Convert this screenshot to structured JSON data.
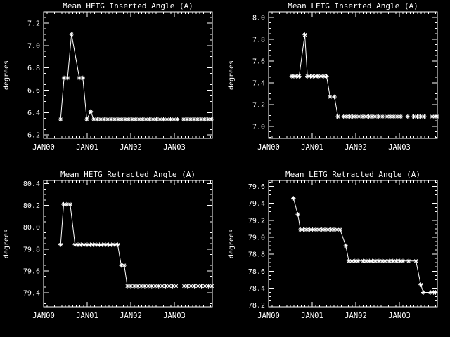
{
  "page": {
    "background": "#000000",
    "foreground": "#ffffff"
  },
  "chart_data": [
    {
      "type": "line",
      "title": "Mean HETG Inserted Angle (A)",
      "xlabel": "",
      "ylabel": "degrees",
      "marker": "asterisk",
      "grid": false,
      "xlim": [
        0,
        3.87
      ],
      "ylim": [
        6.17,
        7.3
      ],
      "xticks": [
        {
          "v": 0,
          "label": "JAN00"
        },
        {
          "v": 1,
          "label": "JAN01"
        },
        {
          "v": 2,
          "label": "JAN02"
        },
        {
          "v": 3,
          "label": "JAN03"
        }
      ],
      "yticks": [
        {
          "v": 6.2,
          "label": "6.2"
        },
        {
          "v": 6.4,
          "label": "6.4"
        },
        {
          "v": 6.6,
          "label": "6.6"
        },
        {
          "v": 6.8,
          "label": "6.8"
        },
        {
          "v": 7.0,
          "label": "7.0"
        },
        {
          "v": 7.2,
          "label": "7.2"
        }
      ],
      "minor_x_step": 0.08333,
      "minor_y_step": 0.05,
      "segments": [
        [
          [
            0.39,
            6.34
          ],
          [
            0.47,
            6.71
          ],
          [
            0.55,
            6.71
          ],
          [
            0.64,
            7.1
          ],
          [
            0.82,
            6.71
          ],
          [
            0.9,
            6.71
          ],
          [
            0.99,
            6.34
          ],
          [
            1.08,
            6.41
          ],
          [
            1.15,
            6.34
          ],
          [
            1.23,
            6.34
          ],
          [
            1.31,
            6.34
          ],
          [
            1.39,
            6.34
          ],
          [
            1.47,
            6.34
          ],
          [
            1.55,
            6.34
          ],
          [
            1.63,
            6.34
          ],
          [
            1.71,
            6.34
          ],
          [
            1.79,
            6.34
          ],
          [
            1.87,
            6.34
          ],
          [
            1.95,
            6.34
          ],
          [
            2.03,
            6.34
          ],
          [
            2.11,
            6.34
          ],
          [
            2.19,
            6.34
          ],
          [
            2.27,
            6.34
          ],
          [
            2.35,
            6.34
          ],
          [
            2.43,
            6.34
          ],
          [
            2.51,
            6.34
          ],
          [
            2.59,
            6.34
          ],
          [
            2.67,
            6.34
          ],
          [
            2.75,
            6.34
          ],
          [
            2.83,
            6.34
          ],
          [
            2.91,
            6.34
          ],
          [
            2.99,
            6.34
          ],
          [
            3.07,
            6.34
          ]
        ],
        [
          [
            3.21,
            6.34
          ],
          [
            3.29,
            6.34
          ],
          [
            3.37,
            6.34
          ],
          [
            3.45,
            6.34
          ],
          [
            3.53,
            6.34
          ],
          [
            3.61,
            6.34
          ],
          [
            3.69,
            6.34
          ],
          [
            3.77,
            6.34
          ],
          [
            3.85,
            6.34
          ]
        ]
      ]
    },
    {
      "type": "line",
      "title": "Mean LETG Inserted Angle (A)",
      "xlabel": "",
      "ylabel": "degrees",
      "marker": "asterisk",
      "grid": false,
      "xlim": [
        0,
        3.87
      ],
      "ylim": [
        6.89,
        8.05
      ],
      "xticks": [
        {
          "v": 0,
          "label": "JAN00"
        },
        {
          "v": 1,
          "label": "JAN01"
        },
        {
          "v": 2,
          "label": "JAN02"
        },
        {
          "v": 3,
          "label": "JAN03"
        }
      ],
      "yticks": [
        {
          "v": 7.0,
          "label": "7.0"
        },
        {
          "v": 7.2,
          "label": "7.2"
        },
        {
          "v": 7.4,
          "label": "7.4"
        },
        {
          "v": 7.6,
          "label": "7.6"
        },
        {
          "v": 7.8,
          "label": "7.8"
        },
        {
          "v": 8.0,
          "label": "8.0"
        }
      ],
      "minor_x_step": 0.08333,
      "minor_y_step": 0.05,
      "segments": [
        [
          [
            0.53,
            7.46
          ],
          [
            0.58,
            7.46
          ],
          [
            0.64,
            7.46
          ],
          [
            0.7,
            7.46
          ],
          [
            0.83,
            7.84
          ],
          [
            0.89,
            7.46
          ],
          [
            0.96,
            7.46
          ],
          [
            1.02,
            7.46
          ],
          [
            1.09,
            7.46
          ],
          [
            1.13,
            7.46
          ],
          [
            1.2,
            7.46
          ],
          [
            1.26,
            7.46
          ],
          [
            1.33,
            7.46
          ],
          [
            1.41,
            7.27
          ],
          [
            1.51,
            7.27
          ],
          [
            1.59,
            7.09
          ]
        ],
        [
          [
            1.72,
            7.09
          ],
          [
            1.79,
            7.09
          ],
          [
            1.86,
            7.09
          ],
          [
            1.93,
            7.09
          ],
          [
            2.0,
            7.09
          ],
          [
            2.07,
            7.09
          ]
        ],
        [
          [
            2.16,
            7.09
          ],
          [
            2.23,
            7.09
          ],
          [
            2.3,
            7.09
          ],
          [
            2.37,
            7.09
          ],
          [
            2.44,
            7.09
          ],
          [
            2.52,
            7.09
          ],
          [
            2.61,
            7.09
          ]
        ],
        [
          [
            2.72,
            7.09
          ],
          [
            2.79,
            7.09
          ],
          [
            2.87,
            7.09
          ],
          [
            2.95,
            7.09
          ],
          [
            3.03,
            7.09
          ]
        ],
        [
          [
            3.19,
            7.09
          ]
        ],
        [
          [
            3.33,
            7.09
          ],
          [
            3.41,
            7.09
          ],
          [
            3.49,
            7.09
          ],
          [
            3.57,
            7.09
          ]
        ],
        [
          [
            3.75,
            7.09
          ],
          [
            3.81,
            7.09
          ],
          [
            3.86,
            7.09
          ]
        ]
      ]
    },
    {
      "type": "line",
      "title": "Mean HETG Retracted Angle (A)",
      "xlabel": "",
      "ylabel": "degrees",
      "marker": "asterisk",
      "grid": false,
      "xlim": [
        0,
        3.87
      ],
      "ylim": [
        79.27,
        80.43
      ],
      "xticks": [
        {
          "v": 0,
          "label": "JAN00"
        },
        {
          "v": 1,
          "label": "JAN01"
        },
        {
          "v": 2,
          "label": "JAN02"
        },
        {
          "v": 3,
          "label": "JAN03"
        }
      ],
      "yticks": [
        {
          "v": 79.4,
          "label": "79.4"
        },
        {
          "v": 79.6,
          "label": "79.6"
        },
        {
          "v": 79.8,
          "label": "79.8"
        },
        {
          "v": 80.0,
          "label": "80.0"
        },
        {
          "v": 80.2,
          "label": "80.2"
        },
        {
          "v": 80.4,
          "label": "80.4"
        }
      ],
      "minor_x_step": 0.08333,
      "minor_y_step": 0.05,
      "segments": [
        [
          [
            0.39,
            79.84
          ],
          [
            0.46,
            80.21
          ],
          [
            0.53,
            80.21
          ],
          [
            0.61,
            80.21
          ],
          [
            0.72,
            79.84
          ],
          [
            0.79,
            79.84
          ],
          [
            0.86,
            79.84
          ],
          [
            0.93,
            79.84
          ],
          [
            1.0,
            79.84
          ],
          [
            1.07,
            79.84
          ],
          [
            1.14,
            79.84
          ],
          [
            1.21,
            79.84
          ],
          [
            1.28,
            79.84
          ],
          [
            1.35,
            79.84
          ],
          [
            1.42,
            79.84
          ],
          [
            1.49,
            79.84
          ],
          [
            1.56,
            79.84
          ],
          [
            1.63,
            79.84
          ],
          [
            1.7,
            79.84
          ],
          [
            1.78,
            79.65
          ],
          [
            1.85,
            79.65
          ],
          [
            1.92,
            79.46
          ],
          [
            2.0,
            79.46
          ],
          [
            2.08,
            79.46
          ],
          [
            2.16,
            79.46
          ],
          [
            2.24,
            79.46
          ],
          [
            2.32,
            79.46
          ],
          [
            2.4,
            79.46
          ],
          [
            2.48,
            79.46
          ],
          [
            2.56,
            79.46
          ],
          [
            2.64,
            79.46
          ],
          [
            2.72,
            79.46
          ],
          [
            2.8,
            79.46
          ],
          [
            2.88,
            79.46
          ],
          [
            2.96,
            79.46
          ],
          [
            3.04,
            79.46
          ]
        ],
        [
          [
            3.22,
            79.46
          ],
          [
            3.3,
            79.46
          ],
          [
            3.38,
            79.46
          ],
          [
            3.46,
            79.46
          ],
          [
            3.54,
            79.46
          ],
          [
            3.62,
            79.46
          ],
          [
            3.7,
            79.46
          ],
          [
            3.78,
            79.46
          ],
          [
            3.86,
            79.46
          ]
        ]
      ]
    },
    {
      "type": "line",
      "title": "Mean LETG Retracted Angle (A)",
      "xlabel": "",
      "ylabel": "degrees",
      "marker": "asterisk",
      "grid": false,
      "xlim": [
        0,
        3.87
      ],
      "ylim": [
        78.18,
        79.67
      ],
      "xticks": [
        {
          "v": 0,
          "label": "JAN00"
        },
        {
          "v": 1,
          "label": "JAN01"
        },
        {
          "v": 2,
          "label": "JAN02"
        },
        {
          "v": 3,
          "label": "JAN03"
        }
      ],
      "yticks": [
        {
          "v": 78.2,
          "label": "78.2"
        },
        {
          "v": 78.4,
          "label": "78.4"
        },
        {
          "v": 78.6,
          "label": "78.6"
        },
        {
          "v": 78.8,
          "label": "78.8"
        },
        {
          "v": 79.0,
          "label": "79.0"
        },
        {
          "v": 79.2,
          "label": "79.2"
        },
        {
          "v": 79.4,
          "label": "79.4"
        },
        {
          "v": 79.6,
          "label": "79.6"
        }
      ],
      "minor_x_step": 0.08333,
      "minor_y_step": 0.05,
      "segments": [
        [
          [
            0.57,
            79.46
          ],
          [
            0.67,
            79.27
          ],
          [
            0.73,
            79.09
          ],
          [
            0.8,
            79.09
          ],
          [
            0.87,
            79.09
          ],
          [
            0.94,
            79.09
          ],
          [
            1.01,
            79.09
          ],
          [
            1.08,
            79.09
          ],
          [
            1.15,
            79.09
          ],
          [
            1.22,
            79.09
          ],
          [
            1.29,
            79.09
          ],
          [
            1.36,
            79.09
          ],
          [
            1.43,
            79.09
          ],
          [
            1.5,
            79.09
          ],
          [
            1.57,
            79.09
          ],
          [
            1.64,
            79.09
          ],
          [
            1.77,
            78.9
          ],
          [
            1.84,
            78.72
          ],
          [
            1.91,
            78.72
          ],
          [
            1.98,
            78.72
          ],
          [
            2.05,
            78.72
          ],
          [
            2.17,
            78.72
          ],
          [
            2.24,
            78.72
          ],
          [
            2.31,
            78.72
          ],
          [
            2.38,
            78.72
          ],
          [
            2.45,
            78.72
          ],
          [
            2.53,
            78.72
          ],
          [
            2.61,
            78.72
          ],
          [
            2.67,
            78.72
          ],
          [
            2.77,
            78.72
          ],
          [
            2.85,
            78.72
          ],
          [
            2.93,
            78.72
          ],
          [
            3.01,
            78.72
          ],
          [
            3.08,
            78.72
          ],
          [
            3.21,
            78.72
          ],
          [
            3.38,
            78.72
          ],
          [
            3.49,
            78.44
          ],
          [
            3.55,
            78.35
          ],
          [
            3.71,
            78.35
          ],
          [
            3.78,
            78.35
          ],
          [
            3.83,
            78.35
          ]
        ]
      ]
    }
  ]
}
